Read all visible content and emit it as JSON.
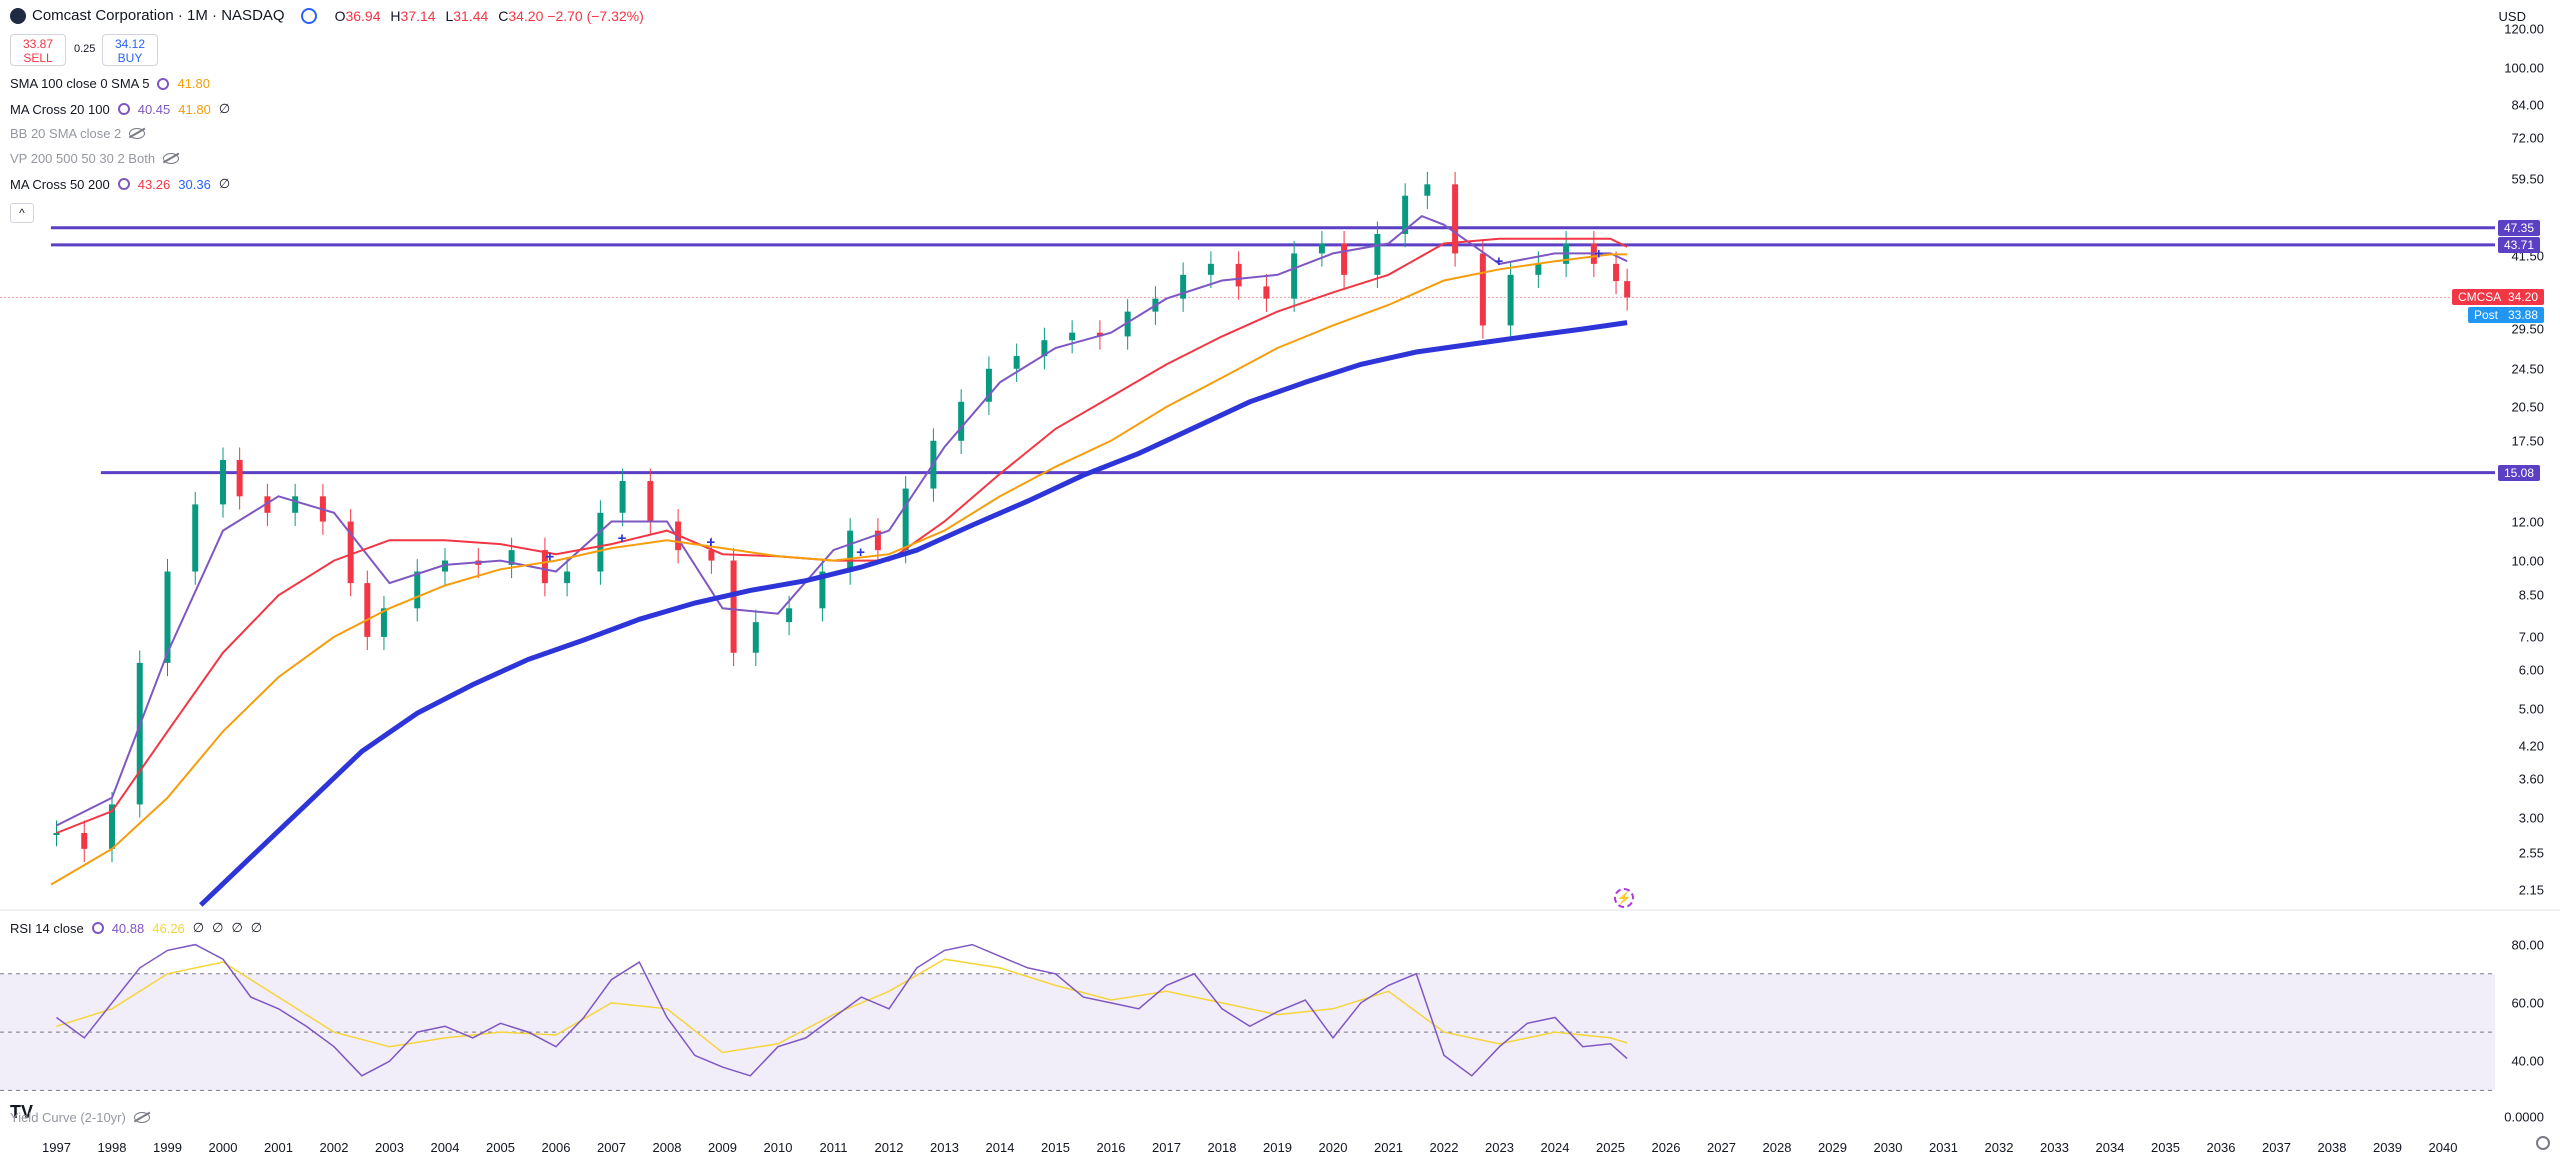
{
  "header": {
    "symbol_title": "Comcast Corporation · 1M · NASDAQ",
    "ohlc": {
      "o_label": "O",
      "o": "36.94",
      "h_label": "H",
      "h": "37.14",
      "l_label": "L",
      "l": "31.44",
      "c_label": "C",
      "c": "34.20",
      "change": "−2.70 (−7.32%)"
    },
    "sell_price": "33.87",
    "sell_label": "SELL",
    "spread": "0.25",
    "buy_price": "34.12",
    "buy_label": "BUY",
    "currency": "USD"
  },
  "indicators": [
    {
      "name": "SMA 100 close 0 SMA 5",
      "values": [
        "41.80"
      ],
      "colors": [
        "#f59d0b"
      ]
    },
    {
      "name": "MA Cross 20 100",
      "values": [
        "40.45",
        "41.80",
        "∅"
      ],
      "colors": [
        "#7e57c2",
        "#f59d0b",
        "#131722"
      ]
    },
    {
      "name": "BB 20 SMA close 2",
      "hidden": true
    },
    {
      "name": "VP 200 500 50 30 2 Both",
      "hidden": true
    },
    {
      "name": "MA Cross 50 200",
      "values": [
        "43.26",
        "30.36",
        "∅"
      ],
      "colors": [
        "#f23645",
        "#2962ff",
        "#131722"
      ]
    }
  ],
  "collapse_glyph": "^",
  "y_axis": {
    "scale": "log",
    "labels": [
      "120.00",
      "100.00",
      "84.00",
      "72.00",
      "59.50",
      "41.50",
      "29.50",
      "24.50",
      "20.50",
      "17.50",
      "12.00",
      "10.00",
      "8.50",
      "7.00",
      "6.00",
      "5.00",
      "4.20",
      "3.60",
      "3.00",
      "2.55",
      "2.15"
    ]
  },
  "price_badges": [
    {
      "value": "47.35",
      "color": "#5b3fc4"
    },
    {
      "value": "43.71",
      "color": "#5b3fc4"
    },
    {
      "value": "15.08",
      "color": "#5b3fc4"
    }
  ],
  "last_price_tag": {
    "symbol": "CMCSA",
    "price": "34.20",
    "color": "#f23645"
  },
  "post_tag": {
    "label": "Post",
    "price": "33.88",
    "color": "#2196f3"
  },
  "x_axis": {
    "labels": [
      "1997",
      "1998",
      "1999",
      "2000",
      "2001",
      "2002",
      "2003",
      "2004",
      "2005",
      "2006",
      "2007",
      "2008",
      "2009",
      "2010",
      "2011",
      "2012",
      "2013",
      "2014",
      "2015",
      "2016",
      "2017",
      "2018",
      "2019",
      "2020",
      "2021",
      "2022",
      "2023",
      "2024",
      "2025",
      "2026",
      "2027",
      "2028",
      "2029",
      "2030",
      "2031",
      "2032",
      "2033",
      "2034",
      "2035",
      "2036",
      "2037",
      "2038",
      "2039",
      "2040"
    ]
  },
  "rsi": {
    "name": "RSI 14 close",
    "values": [
      "40.88",
      "46.26",
      "∅",
      "∅",
      "∅",
      "∅"
    ],
    "colors": [
      "#7e57c2",
      "#f5d53b",
      "#131722",
      "#131722",
      "#131722",
      "#131722"
    ],
    "axis_labels": [
      "80.00",
      "60.00",
      "40.00"
    ]
  },
  "yield_curve": {
    "name": "Yield Curve (2-10yr)",
    "axis_label": "0.0000"
  },
  "chart_data": {
    "type": "line",
    "title": "Comcast Corporation · 1M · NASDAQ",
    "x_range": [
      1996.9,
      2040.8
    ],
    "y_range": [
      2.0,
      125.0
    ],
    "y_scale": "log",
    "price_series": {
      "name": "CMCSA",
      "x": [
        1997.0,
        1997.5,
        1998.0,
        1998.5,
        1999.0,
        1999.5,
        2000.0,
        2000.3,
        2000.8,
        2001.3,
        2001.8,
        2002.3,
        2002.6,
        2002.9,
        2003.5,
        2004.0,
        2004.6,
        2005.2,
        2005.8,
        2006.2,
        2006.8,
        2007.2,
        2007.7,
        2008.2,
        2008.8,
        2009.2,
        2009.6,
        2010.2,
        2010.8,
        2011.3,
        2011.8,
        2012.3,
        2012.8,
        2013.3,
        2013.8,
        2014.3,
        2014.8,
        2015.3,
        2015.8,
        2016.3,
        2016.8,
        2017.3,
        2017.8,
        2018.3,
        2018.8,
        2019.3,
        2019.8,
        2020.2,
        2020.8,
        2021.3,
        2021.7,
        2022.2,
        2022.7,
        2023.2,
        2023.7,
        2024.2,
        2024.7,
        2025.1,
        2025.3
      ],
      "values": [
        2.8,
        2.6,
        3.2,
        6.2,
        9.5,
        13.0,
        16.0,
        13.5,
        12.5,
        13.5,
        12.0,
        9.0,
        7.0,
        8.0,
        9.5,
        10.0,
        9.8,
        10.5,
        9.0,
        9.5,
        12.5,
        14.5,
        12.0,
        10.5,
        10.0,
        6.5,
        7.5,
        8.0,
        9.5,
        11.5,
        10.5,
        14.0,
        17.5,
        21.0,
        24.5,
        26.0,
        28.0,
        29.0,
        28.5,
        32.0,
        34.0,
        38.0,
        40.0,
        36.0,
        34.0,
        42.0,
        44.0,
        38.0,
        46.0,
        55.0,
        58.0,
        42.0,
        30.0,
        38.0,
        40.0,
        44.0,
        40.0,
        36.9,
        34.2
      ]
    },
    "series": [
      {
        "name": "MA Cross 20 100 (fast)",
        "color": "#7e57c2",
        "x": [
          1997.0,
          1998.0,
          1999.0,
          2000.0,
          2001.0,
          2002.0,
          2003.0,
          2004.0,
          2005.0,
          2006.0,
          2007.0,
          2008.0,
          2009.0,
          2010.0,
          2011.0,
          2012.0,
          2013.0,
          2014.0,
          2015.0,
          2016.0,
          2017.0,
          2018.0,
          2019.0,
          2020.0,
          2021.0,
          2021.6,
          2022.0,
          2023.0,
          2024.0,
          2025.0,
          2025.3
        ],
        "values": [
          2.9,
          3.3,
          6.5,
          11.5,
          13.5,
          12.5,
          9.0,
          9.8,
          10.0,
          9.5,
          12.0,
          12.0,
          8.0,
          7.8,
          10.5,
          11.5,
          17.0,
          23.0,
          27.0,
          29.0,
          34.0,
          37.0,
          38.0,
          42.0,
          44.0,
          50.0,
          48.0,
          40.0,
          42.0,
          42.0,
          40.5
        ]
      },
      {
        "name": "MA Cross 50 200 (fast)",
        "color": "#f23645",
        "x": [
          1997.0,
          1998.0,
          1999.0,
          2000.0,
          2001.0,
          2002.0,
          2003.0,
          2004.0,
          2005.0,
          2006.0,
          2007.0,
          2008.0,
          2009.0,
          2010.0,
          2011.0,
          2012.0,
          2013.0,
          2014.0,
          2015.0,
          2016.0,
          2017.0,
          2018.0,
          2019.0,
          2020.0,
          2021.0,
          2022.0,
          2023.0,
          2024.0,
          2025.0,
          2025.3
        ],
        "values": [
          2.8,
          3.1,
          4.5,
          6.5,
          8.5,
          10.0,
          11.0,
          11.0,
          10.8,
          10.3,
          10.8,
          11.5,
          10.3,
          10.2,
          10.0,
          10.0,
          12.0,
          15.0,
          18.5,
          21.5,
          25.0,
          28.5,
          32.0,
          35.0,
          38.0,
          44.0,
          45.0,
          45.0,
          45.0,
          43.3
        ]
      },
      {
        "name": "SMA 100",
        "color": "#f59d0b",
        "x": [
          1996.9,
          1998.0,
          1999.0,
          2000.0,
          2001.0,
          2002.0,
          2003.0,
          2004.0,
          2005.0,
          2006.0,
          2007.0,
          2008.0,
          2009.0,
          2010.0,
          2011.0,
          2012.0,
          2013.0,
          2014.0,
          2015.0,
          2016.0,
          2017.0,
          2018.0,
          2019.0,
          2020.0,
          2021.0,
          2022.0,
          2023.0,
          2024.0,
          2025.0,
          2025.3
        ],
        "values": [
          2.2,
          2.6,
          3.3,
          4.5,
          5.8,
          7.0,
          8.0,
          8.9,
          9.6,
          10.0,
          10.6,
          11.0,
          10.6,
          10.2,
          10.0,
          10.3,
          11.5,
          13.5,
          15.5,
          17.5,
          20.5,
          23.5,
          27.0,
          30.0,
          33.0,
          37.0,
          39.0,
          40.5,
          41.8,
          41.8
        ]
      },
      {
        "name": "MA Cross 50 200 (slow)",
        "color": "#2d35d8",
        "x": [
          1999.6,
          2000.5,
          2001.5,
          2002.5,
          2003.5,
          2004.5,
          2005.5,
          2006.5,
          2007.5,
          2008.5,
          2009.5,
          2010.5,
          2011.5,
          2012.5,
          2013.5,
          2014.5,
          2015.5,
          2016.5,
          2017.5,
          2018.5,
          2019.5,
          2020.5,
          2021.5,
          2022.5,
          2023.5,
          2024.5,
          2025.3
        ],
        "values": [
          2.0,
          2.5,
          3.2,
          4.1,
          4.9,
          5.6,
          6.3,
          6.9,
          7.6,
          8.2,
          8.7,
          9.1,
          9.7,
          10.5,
          11.8,
          13.2,
          14.9,
          16.5,
          18.6,
          21.0,
          23.0,
          25.0,
          26.5,
          27.5,
          28.5,
          29.5,
          30.4
        ]
      }
    ],
    "horizontal_levels": [
      {
        "value": 47.35,
        "from_year": 1996.9,
        "color": "#5b3fc4"
      },
      {
        "value": 43.71,
        "from_year": 1996.9,
        "color": "#5b3fc4"
      },
      {
        "value": 15.08,
        "from_year": 1997.8,
        "color": "#5b3fc4"
      }
    ],
    "rsi_series": {
      "name": "RSI 14",
      "color": "#7e57c2",
      "y_range": [
        25,
        85
      ],
      "x": [
        1997.0,
        1997.5,
        1998.0,
        1998.5,
        1999.0,
        1999.5,
        2000.0,
        2000.5,
        2001.0,
        2001.5,
        2002.0,
        2002.5,
        2003.0,
        2003.5,
        2004.0,
        2004.5,
        2005.0,
        2005.5,
        2006.0,
        2006.5,
        2007.0,
        2007.5,
        2008.0,
        2008.5,
        2009.0,
        2009.5,
        2010.0,
        2010.5,
        2011.0,
        2011.5,
        2012.0,
        2012.5,
        2013.0,
        2013.5,
        2014.0,
        2014.5,
        2015.0,
        2015.5,
        2016.0,
        2016.5,
        2017.0,
        2017.5,
        2018.0,
        2018.5,
        2019.0,
        2019.5,
        2020.0,
        2020.5,
        2021.0,
        2021.5,
        2022.0,
        2022.5,
        2023.0,
        2023.5,
        2024.0,
        2024.5,
        2025.0,
        2025.3
      ],
      "values": [
        55,
        48,
        60,
        72,
        78,
        80,
        75,
        62,
        58,
        52,
        45,
        35,
        40,
        50,
        52,
        48,
        53,
        50,
        45,
        55,
        68,
        74,
        55,
        42,
        38,
        35,
        45,
        48,
        55,
        62,
        58,
        72,
        78,
        80,
        76,
        72,
        70,
        62,
        60,
        58,
        66,
        70,
        58,
        52,
        57,
        61,
        48,
        60,
        66,
        70,
        42,
        35,
        45,
        53,
        55,
        45,
        46,
        40.9
      ]
    },
    "rsi_ma": {
      "name": "RSI MA",
      "color": "#f5d53b",
      "x": [
        1997.0,
        1998.0,
        1999.0,
        2000.0,
        2001.0,
        2002.0,
        2003.0,
        2004.0,
        2005.0,
        2006.0,
        2007.0,
        2008.0,
        2009.0,
        2010.0,
        2011.0,
        2012.0,
        2013.0,
        2014.0,
        2015.0,
        2016.0,
        2017.0,
        2018.0,
        2019.0,
        2020.0,
        2021.0,
        2022.0,
        2023.0,
        2024.0,
        2025.0,
        2025.3
      ],
      "values": [
        52,
        58,
        70,
        74,
        62,
        50,
        45,
        48,
        50,
        49,
        60,
        58,
        43,
        46,
        56,
        64,
        75,
        72,
        66,
        61,
        64,
        60,
        56,
        58,
        64,
        50,
        46,
        50,
        48,
        46.3
      ]
    },
    "rsi_band": [
      30,
      70
    ],
    "rsi_midline": 50
  }
}
